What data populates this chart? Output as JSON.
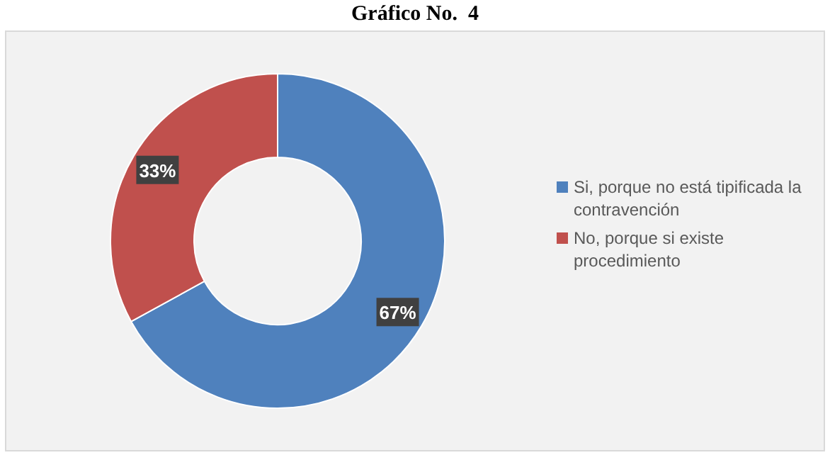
{
  "chart_data": {
    "type": "donut",
    "title": "Gráfico No.  4",
    "categories": [
      "Si, porque no está tipificada la contravención",
      "No, porque si existe procedimiento"
    ],
    "values": [
      67,
      33
    ],
    "colors": [
      "#4f81bd",
      "#c0504d"
    ],
    "value_labels": [
      "67%",
      "33%"
    ],
    "legend": "right"
  }
}
